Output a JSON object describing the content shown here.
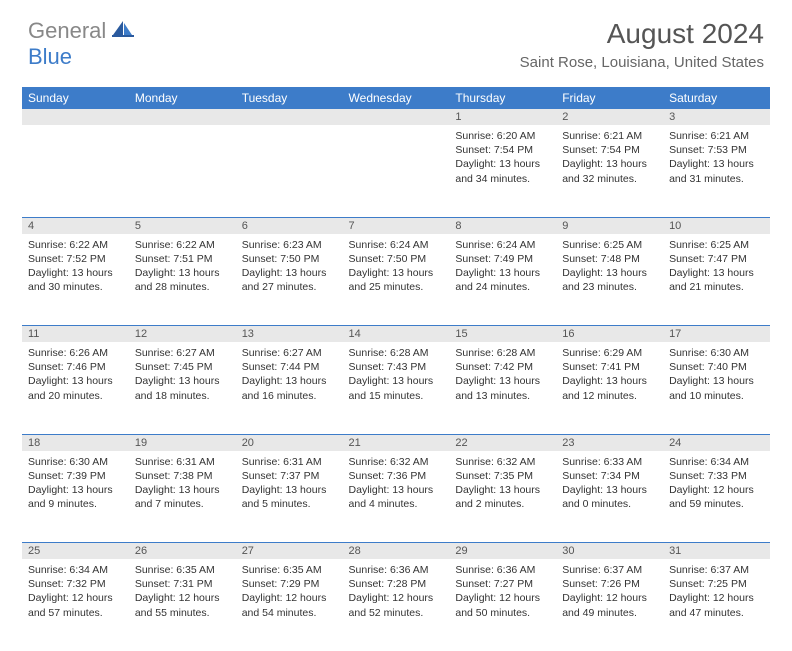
{
  "logo": {
    "text_gray": "General",
    "text_blue": "Blue"
  },
  "title": "August 2024",
  "location": "Saint Rose, Louisiana, United States",
  "colors": {
    "header_bg": "#3d7cc9",
    "header_fg": "#ffffff",
    "daynum_bg": "#e8e8e8",
    "text": "#333333",
    "logo_gray": "#888888",
    "logo_blue": "#3d7cc9",
    "border": "#3d7cc9"
  },
  "day_headers": [
    "Sunday",
    "Monday",
    "Tuesday",
    "Wednesday",
    "Thursday",
    "Friday",
    "Saturday"
  ],
  "weeks": [
    [
      null,
      null,
      null,
      null,
      {
        "n": "1",
        "sr": "6:20 AM",
        "ss": "7:54 PM",
        "dl": "13 hours and 34 minutes."
      },
      {
        "n": "2",
        "sr": "6:21 AM",
        "ss": "7:54 PM",
        "dl": "13 hours and 32 minutes."
      },
      {
        "n": "3",
        "sr": "6:21 AM",
        "ss": "7:53 PM",
        "dl": "13 hours and 31 minutes."
      }
    ],
    [
      {
        "n": "4",
        "sr": "6:22 AM",
        "ss": "7:52 PM",
        "dl": "13 hours and 30 minutes."
      },
      {
        "n": "5",
        "sr": "6:22 AM",
        "ss": "7:51 PM",
        "dl": "13 hours and 28 minutes."
      },
      {
        "n": "6",
        "sr": "6:23 AM",
        "ss": "7:50 PM",
        "dl": "13 hours and 27 minutes."
      },
      {
        "n": "7",
        "sr": "6:24 AM",
        "ss": "7:50 PM",
        "dl": "13 hours and 25 minutes."
      },
      {
        "n": "8",
        "sr": "6:24 AM",
        "ss": "7:49 PM",
        "dl": "13 hours and 24 minutes."
      },
      {
        "n": "9",
        "sr": "6:25 AM",
        "ss": "7:48 PM",
        "dl": "13 hours and 23 minutes."
      },
      {
        "n": "10",
        "sr": "6:25 AM",
        "ss": "7:47 PM",
        "dl": "13 hours and 21 minutes."
      }
    ],
    [
      {
        "n": "11",
        "sr": "6:26 AM",
        "ss": "7:46 PM",
        "dl": "13 hours and 20 minutes."
      },
      {
        "n": "12",
        "sr": "6:27 AM",
        "ss": "7:45 PM",
        "dl": "13 hours and 18 minutes."
      },
      {
        "n": "13",
        "sr": "6:27 AM",
        "ss": "7:44 PM",
        "dl": "13 hours and 16 minutes."
      },
      {
        "n": "14",
        "sr": "6:28 AM",
        "ss": "7:43 PM",
        "dl": "13 hours and 15 minutes."
      },
      {
        "n": "15",
        "sr": "6:28 AM",
        "ss": "7:42 PM",
        "dl": "13 hours and 13 minutes."
      },
      {
        "n": "16",
        "sr": "6:29 AM",
        "ss": "7:41 PM",
        "dl": "13 hours and 12 minutes."
      },
      {
        "n": "17",
        "sr": "6:30 AM",
        "ss": "7:40 PM",
        "dl": "13 hours and 10 minutes."
      }
    ],
    [
      {
        "n": "18",
        "sr": "6:30 AM",
        "ss": "7:39 PM",
        "dl": "13 hours and 9 minutes."
      },
      {
        "n": "19",
        "sr": "6:31 AM",
        "ss": "7:38 PM",
        "dl": "13 hours and 7 minutes."
      },
      {
        "n": "20",
        "sr": "6:31 AM",
        "ss": "7:37 PM",
        "dl": "13 hours and 5 minutes."
      },
      {
        "n": "21",
        "sr": "6:32 AM",
        "ss": "7:36 PM",
        "dl": "13 hours and 4 minutes."
      },
      {
        "n": "22",
        "sr": "6:32 AM",
        "ss": "7:35 PM",
        "dl": "13 hours and 2 minutes."
      },
      {
        "n": "23",
        "sr": "6:33 AM",
        "ss": "7:34 PM",
        "dl": "13 hours and 0 minutes."
      },
      {
        "n": "24",
        "sr": "6:34 AM",
        "ss": "7:33 PM",
        "dl": "12 hours and 59 minutes."
      }
    ],
    [
      {
        "n": "25",
        "sr": "6:34 AM",
        "ss": "7:32 PM",
        "dl": "12 hours and 57 minutes."
      },
      {
        "n": "26",
        "sr": "6:35 AM",
        "ss": "7:31 PM",
        "dl": "12 hours and 55 minutes."
      },
      {
        "n": "27",
        "sr": "6:35 AM",
        "ss": "7:29 PM",
        "dl": "12 hours and 54 minutes."
      },
      {
        "n": "28",
        "sr": "6:36 AM",
        "ss": "7:28 PM",
        "dl": "12 hours and 52 minutes."
      },
      {
        "n": "29",
        "sr": "6:36 AM",
        "ss": "7:27 PM",
        "dl": "12 hours and 50 minutes."
      },
      {
        "n": "30",
        "sr": "6:37 AM",
        "ss": "7:26 PM",
        "dl": "12 hours and 49 minutes."
      },
      {
        "n": "31",
        "sr": "6:37 AM",
        "ss": "7:25 PM",
        "dl": "12 hours and 47 minutes."
      }
    ]
  ],
  "labels": {
    "sunrise": "Sunrise:",
    "sunset": "Sunset:",
    "daylight": "Daylight:"
  }
}
